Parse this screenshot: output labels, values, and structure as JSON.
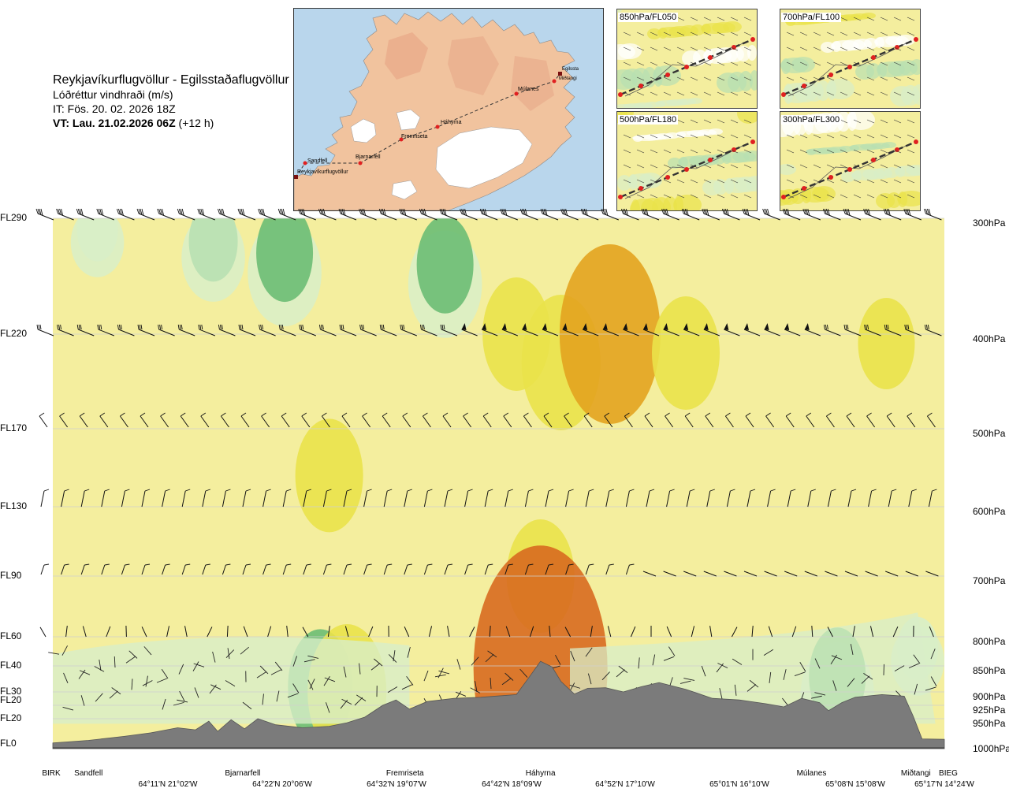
{
  "header": {
    "route": "Reykjavíkurflugvöllur - Egilsstaðaflugvöllur",
    "variable": "Lóðréttur vindhraði (m/s)",
    "issue_time": "IT: Fös. 20. 02. 2026 18Z",
    "valid_time": "VT: Lau. 21.02.2026 06Z",
    "lead": "(+12 h)"
  },
  "map": {
    "waypoints": [
      {
        "name": "Reykjavíkurflugvöllur"
      },
      {
        "name": "Sandfell"
      },
      {
        "name": "Bjarnarfell"
      },
      {
        "name": "Fremriseta"
      },
      {
        "name": "Háhyrna"
      },
      {
        "name": "Múlanes"
      },
      {
        "name": "Egilssta"
      },
      {
        "name": "Miðtangi"
      }
    ]
  },
  "level_panels": [
    {
      "label": "850hPa/FL050"
    },
    {
      "label": "700hPa/FL100"
    },
    {
      "label": "500hPa/FL180"
    },
    {
      "label": "300hPa/FL300"
    }
  ],
  "colors": {
    "background_band": "#f4ee9e",
    "updraft_moderate": "#eae24a",
    "updraft_strong": "#e3a31f",
    "updraft_max": "#d86a1f",
    "downdraft_light": "#d8eec8",
    "downdraft_moderate": "#b8e0b2",
    "downdraft_strong": "#6cbc74",
    "terrain": "#7b7b7b",
    "map_water": "#b9d6ec",
    "map_land": "#f0c09a",
    "route_point": "#e02020"
  },
  "chart_data": {
    "type": "heatmap",
    "title": "",
    "xlabel": "",
    "ylabel": "",
    "y_axis_left": [
      "FL290",
      "FL220",
      "FL170",
      "FL130",
      "FL90",
      "FL60",
      "FL40",
      "FL30",
      "FL20",
      "FL20",
      "FL0"
    ],
    "y_axis_right": [
      "300hPa",
      "400hPa",
      "500hPa",
      "600hPa",
      "700hPa",
      "800hPa",
      "850hPa",
      "900hPa",
      "925hPa",
      "950hPa",
      "1000hPa"
    ],
    "pressure_levels_hpa": [
      300,
      400,
      500,
      600,
      700,
      800,
      850,
      900,
      925,
      950,
      1000
    ],
    "locations": [
      "BIRK",
      "Sandfell",
      "Bjarnarfell",
      "Fremriseta",
      "Háhyrna",
      "Múlanes",
      "Miðtangi",
      "BIEG"
    ],
    "coordinates": [
      "64°11'N 21°02'W",
      "64°22'N 20°06'W",
      "64°32'N 19°07'W",
      "64°42'N 18°09'W",
      "64°52'N 17°10'W",
      "65°01'N 16°10'W",
      "65°08'N 15°08'W",
      "65°17'N 14°24'W"
    ],
    "route_fraction": {
      "BIRK": 0.0,
      "Sandfell": 0.04,
      "Bjarnarfell": 0.213,
      "Fremriseta": 0.395,
      "Háhyrna": 0.547,
      "Múlanes": 0.851,
      "Miðtangi": 0.968,
      "BIEG": 1.0
    },
    "terrain_profile_hpa": [
      [
        0.0,
        998
      ],
      [
        0.04,
        993
      ],
      [
        0.08,
        985
      ],
      [
        0.11,
        978
      ],
      [
        0.14,
        968
      ],
      [
        0.16,
        972
      ],
      [
        0.175,
        955
      ],
      [
        0.185,
        975
      ],
      [
        0.2,
        952
      ],
      [
        0.215,
        970
      ],
      [
        0.23,
        950
      ],
      [
        0.25,
        962
      ],
      [
        0.28,
        968
      ],
      [
        0.31,
        965
      ],
      [
        0.33,
        958
      ],
      [
        0.35,
        947
      ],
      [
        0.37,
        925
      ],
      [
        0.385,
        915
      ],
      [
        0.4,
        932
      ],
      [
        0.42,
        918
      ],
      [
        0.45,
        912
      ],
      [
        0.48,
        910
      ],
      [
        0.52,
        905
      ],
      [
        0.535,
        870
      ],
      [
        0.547,
        842
      ],
      [
        0.56,
        852
      ],
      [
        0.57,
        880
      ],
      [
        0.585,
        904
      ],
      [
        0.6,
        893
      ],
      [
        0.62,
        892
      ],
      [
        0.64,
        900
      ],
      [
        0.66,
        890
      ],
      [
        0.68,
        882
      ],
      [
        0.71,
        895
      ],
      [
        0.74,
        912
      ],
      [
        0.77,
        915
      ],
      [
        0.8,
        922
      ],
      [
        0.82,
        928
      ],
      [
        0.84,
        912
      ],
      [
        0.86,
        920
      ],
      [
        0.87,
        935
      ],
      [
        0.885,
        920
      ],
      [
        0.9,
        910
      ],
      [
        0.93,
        905
      ],
      [
        0.955,
        908
      ],
      [
        0.965,
        945
      ],
      [
        0.975,
        990
      ],
      [
        1.0,
        991
      ]
    ],
    "vertical_velocity_ms": [
      {
        "x": 0.05,
        "p": 310,
        "w": -0.2
      },
      {
        "x": 0.18,
        "p": 320,
        "w": -0.3
      },
      {
        "x": 0.26,
        "p": 330,
        "w": -0.4
      },
      {
        "x": 0.44,
        "p": 340,
        "w": -0.4
      },
      {
        "x": 0.52,
        "p": 400,
        "w": 0.3
      },
      {
        "x": 0.57,
        "p": 430,
        "w": 0.4
      },
      {
        "x": 0.625,
        "p": 400,
        "w": 0.6
      },
      {
        "x": 0.547,
        "p": 700,
        "w": 0.3
      },
      {
        "x": 0.547,
        "p": 855,
        "w": 0.9
      },
      {
        "x": 0.31,
        "p": 560,
        "w": 0.3
      },
      {
        "x": 0.71,
        "p": 420,
        "w": 0.3
      },
      {
        "x": 0.935,
        "p": 410,
        "w": 0.2
      },
      {
        "x": 0.3,
        "p": 890,
        "w": -0.5
      },
      {
        "x": 0.33,
        "p": 900,
        "w": 0.4
      },
      {
        "x": 0.88,
        "p": 870,
        "w": -0.4
      },
      {
        "x": 0.97,
        "p": 820,
        "w": -0.2
      }
    ]
  }
}
